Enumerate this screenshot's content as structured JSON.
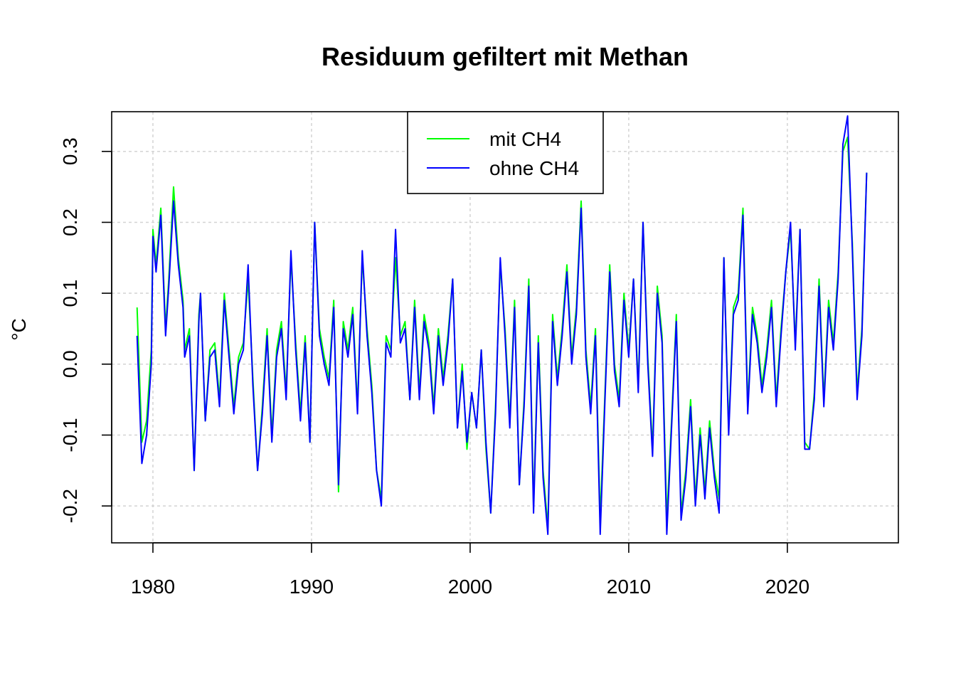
{
  "chart_data": {
    "type": "line",
    "title": "Residuum gefiltert mit Methan",
    "xlabel": "",
    "ylabel": "°C",
    "xlim": [
      1977.4,
      2027.0
    ],
    "ylim": [
      -0.252,
      0.356
    ],
    "x_ticks": [
      1980,
      1990,
      2000,
      2010,
      2020
    ],
    "x_tick_labels": [
      "1980",
      "1990",
      "2000",
      "2010",
      "2020"
    ],
    "y_ticks": [
      -0.2,
      -0.1,
      0.0,
      0.1,
      0.2,
      0.3
    ],
    "y_tick_labels": [
      "-0.2",
      "-0.1",
      "0.0",
      "0.1",
      "0.2",
      "0.3"
    ],
    "grid": true,
    "legend_position": "top-center",
    "series": [
      {
        "name": "mit CH4",
        "color": "#00ff00",
        "x": [
          1979.0,
          1979.3,
          1979.6,
          1979.9,
          1980.0,
          1980.2,
          1980.5,
          1980.8,
          1981.0,
          1981.3,
          1981.6,
          1981.9,
          1982.0,
          1982.3,
          1982.6,
          1982.9,
          1983.0,
          1983.3,
          1983.6,
          1983.9,
          1984.2,
          1984.5,
          1984.8,
          1985.1,
          1985.4,
          1985.7,
          1986.0,
          1986.3,
          1986.6,
          1986.9,
          1987.2,
          1987.5,
          1987.8,
          1988.1,
          1988.4,
          1988.7,
          1989.0,
          1989.3,
          1989.6,
          1989.9,
          1990.2,
          1990.5,
          1990.8,
          1991.1,
          1991.4,
          1991.7,
          1992.0,
          1992.3,
          1992.6,
          1992.9,
          1993.2,
          1993.5,
          1993.8,
          1994.1,
          1994.4,
          1994.7,
          1995.0,
          1995.3,
          1995.6,
          1995.9,
          1996.2,
          1996.5,
          1996.8,
          1997.1,
          1997.4,
          1997.7,
          1998.0,
          1998.3,
          1998.6,
          1998.9,
          1999.2,
          1999.5,
          1999.8,
          2000.1,
          2000.4,
          2000.7,
          2001.0,
          2001.3,
          2001.6,
          2001.9,
          2002.2,
          2002.5,
          2002.8,
          2003.1,
          2003.4,
          2003.7,
          2004.0,
          2004.3,
          2004.6,
          2004.9,
          2005.2,
          2005.5,
          2005.8,
          2006.1,
          2006.4,
          2006.7,
          2007.0,
          2007.3,
          2007.6,
          2007.9,
          2008.2,
          2008.5,
          2008.8,
          2009.1,
          2009.4,
          2009.7,
          2010.0,
          2010.3,
          2010.6,
          2010.9,
          2011.2,
          2011.5,
          2011.8,
          2012.1,
          2012.4,
          2012.7,
          2013.0,
          2013.3,
          2013.6,
          2013.9,
          2014.2,
          2014.5,
          2014.8,
          2015.1,
          2015.4,
          2015.7,
          2016.0,
          2016.3,
          2016.6,
          2016.9,
          2017.2,
          2017.5,
          2017.8,
          2018.1,
          2018.4,
          2018.7,
          2019.0,
          2019.3,
          2019.6,
          2019.9,
          2020.2,
          2020.5,
          2020.8,
          2021.1,
          2021.4,
          2021.7,
          2022.0,
          2022.3,
          2022.6,
          2022.9,
          2023.2,
          2023.5,
          2023.8,
          2024.1,
          2024.4,
          2024.7,
          2025.0
        ],
        "values": [
          0.08,
          -0.11,
          -0.08,
          0.02,
          0.19,
          0.14,
          0.22,
          0.05,
          0.12,
          0.25,
          0.15,
          0.09,
          0.02,
          0.05,
          -0.15,
          0.07,
          0.1,
          -0.08,
          0.02,
          0.03,
          -0.05,
          0.1,
          0.02,
          -0.06,
          0.01,
          0.03,
          0.12,
          -0.02,
          -0.15,
          -0.06,
          0.05,
          -0.1,
          0.02,
          0.06,
          -0.04,
          0.15,
          0.03,
          -0.07,
          0.04,
          -0.11,
          0.2,
          0.05,
          0.01,
          -0.02,
          0.09,
          -0.18,
          0.06,
          0.02,
          0.08,
          -0.06,
          0.15,
          0.05,
          -0.03,
          -0.15,
          -0.19,
          0.04,
          0.02,
          0.15,
          0.04,
          0.06,
          -0.05,
          0.09,
          -0.04,
          0.07,
          0.03,
          -0.06,
          0.05,
          -0.02,
          0.04,
          0.12,
          -0.09,
          0.0,
          -0.12,
          -0.04,
          -0.09,
          0.02,
          -0.12,
          -0.21,
          -0.06,
          0.14,
          0.05,
          -0.08,
          0.09,
          -0.17,
          -0.05,
          0.12,
          -0.2,
          0.04,
          -0.15,
          -0.23,
          0.07,
          -0.02,
          0.05,
          0.14,
          0.01,
          0.08,
          0.23,
          0.02,
          -0.06,
          0.05,
          -0.22,
          -0.04,
          0.14,
          0.0,
          -0.05,
          0.1,
          0.02,
          0.12,
          -0.03,
          0.2,
          0.01,
          -0.12,
          0.11,
          0.04,
          -0.22,
          -0.08,
          0.07,
          -0.21,
          -0.15,
          -0.05,
          -0.19,
          -0.09,
          -0.18,
          -0.08,
          -0.15,
          -0.19,
          0.15,
          -0.09,
          0.08,
          0.1,
          0.22,
          -0.06,
          0.08,
          0.04,
          -0.03,
          0.02,
          0.09,
          -0.05,
          0.05,
          0.13,
          0.19,
          0.03,
          0.19,
          -0.11,
          -0.12,
          -0.04,
          0.12,
          -0.05,
          0.09,
          0.03,
          0.13,
          0.3,
          0.32,
          0.17,
          -0.04,
          0.05,
          0.27
        ]
      },
      {
        "name": "ohne CH4",
        "color": "#0000ff",
        "x": [
          1979.0,
          1979.3,
          1979.6,
          1979.9,
          1980.0,
          1980.2,
          1980.5,
          1980.8,
          1981.0,
          1981.3,
          1981.6,
          1981.9,
          1982.0,
          1982.3,
          1982.6,
          1982.9,
          1983.0,
          1983.3,
          1983.6,
          1983.9,
          1984.2,
          1984.5,
          1984.8,
          1985.1,
          1985.4,
          1985.7,
          1986.0,
          1986.3,
          1986.6,
          1986.9,
          1987.2,
          1987.5,
          1987.8,
          1988.1,
          1988.4,
          1988.7,
          1989.0,
          1989.3,
          1989.6,
          1989.9,
          1990.2,
          1990.5,
          1990.8,
          1991.1,
          1991.4,
          1991.7,
          1992.0,
          1992.3,
          1992.6,
          1992.9,
          1993.2,
          1993.5,
          1993.8,
          1994.1,
          1994.4,
          1994.7,
          1995.0,
          1995.3,
          1995.6,
          1995.9,
          1996.2,
          1996.5,
          1996.8,
          1997.1,
          1997.4,
          1997.7,
          1998.0,
          1998.3,
          1998.6,
          1998.9,
          1999.2,
          1999.5,
          1999.8,
          2000.1,
          2000.4,
          2000.7,
          2001.0,
          2001.3,
          2001.6,
          2001.9,
          2002.2,
          2002.5,
          2002.8,
          2003.1,
          2003.4,
          2003.7,
          2004.0,
          2004.3,
          2004.6,
          2004.9,
          2005.2,
          2005.5,
          2005.8,
          2006.1,
          2006.4,
          2006.7,
          2007.0,
          2007.3,
          2007.6,
          2007.9,
          2008.2,
          2008.5,
          2008.8,
          2009.1,
          2009.4,
          2009.7,
          2010.0,
          2010.3,
          2010.6,
          2010.9,
          2011.2,
          2011.5,
          2011.8,
          2012.1,
          2012.4,
          2012.7,
          2013.0,
          2013.3,
          2013.6,
          2013.9,
          2014.2,
          2014.5,
          2014.8,
          2015.1,
          2015.4,
          2015.7,
          2016.0,
          2016.3,
          2016.6,
          2016.9,
          2017.2,
          2017.5,
          2017.8,
          2018.1,
          2018.4,
          2018.7,
          2019.0,
          2019.3,
          2019.6,
          2019.9,
          2020.2,
          2020.5,
          2020.8,
          2021.1,
          2021.4,
          2021.7,
          2022.0,
          2022.3,
          2022.6,
          2022.9,
          2023.2,
          2023.5,
          2023.8,
          2024.1,
          2024.4,
          2024.7,
          2025.0
        ],
        "values": [
          0.04,
          -0.14,
          -0.1,
          0.0,
          0.18,
          0.13,
          0.21,
          0.04,
          0.11,
          0.23,
          0.14,
          0.08,
          0.01,
          0.04,
          -0.15,
          0.06,
          0.1,
          -0.08,
          0.01,
          0.02,
          -0.06,
          0.09,
          0.01,
          -0.07,
          0.0,
          0.02,
          0.14,
          -0.03,
          -0.15,
          -0.07,
          0.04,
          -0.11,
          0.01,
          0.05,
          -0.05,
          0.16,
          0.02,
          -0.08,
          0.03,
          -0.11,
          0.2,
          0.04,
          0.0,
          -0.03,
          0.08,
          -0.17,
          0.05,
          0.01,
          0.07,
          -0.07,
          0.16,
          0.04,
          -0.04,
          -0.15,
          -0.2,
          0.03,
          0.01,
          0.19,
          0.03,
          0.05,
          -0.05,
          0.08,
          -0.05,
          0.06,
          0.02,
          -0.07,
          0.04,
          -0.03,
          0.03,
          0.12,
          -0.09,
          -0.01,
          -0.11,
          -0.04,
          -0.09,
          0.02,
          -0.11,
          -0.21,
          -0.07,
          0.15,
          0.04,
          -0.09,
          0.08,
          -0.17,
          -0.06,
          0.11,
          -0.21,
          0.03,
          -0.16,
          -0.24,
          0.06,
          -0.03,
          0.04,
          0.13,
          0.0,
          0.07,
          0.22,
          0.01,
          -0.07,
          0.04,
          -0.24,
          -0.05,
          0.13,
          -0.01,
          -0.06,
          0.09,
          0.01,
          0.12,
          -0.04,
          0.2,
          0.0,
          -0.13,
          0.1,
          0.03,
          -0.24,
          -0.09,
          0.06,
          -0.22,
          -0.16,
          -0.06,
          -0.2,
          -0.1,
          -0.19,
          -0.09,
          -0.16,
          -0.21,
          0.15,
          -0.1,
          0.07,
          0.09,
          0.21,
          -0.07,
          0.07,
          0.03,
          -0.04,
          0.01,
          0.08,
          -0.06,
          0.04,
          0.13,
          0.2,
          0.02,
          0.19,
          -0.12,
          -0.12,
          -0.05,
          0.11,
          -0.06,
          0.08,
          0.02,
          0.12,
          0.31,
          0.35,
          0.16,
          -0.05,
          0.04,
          0.27
        ]
      }
    ]
  }
}
